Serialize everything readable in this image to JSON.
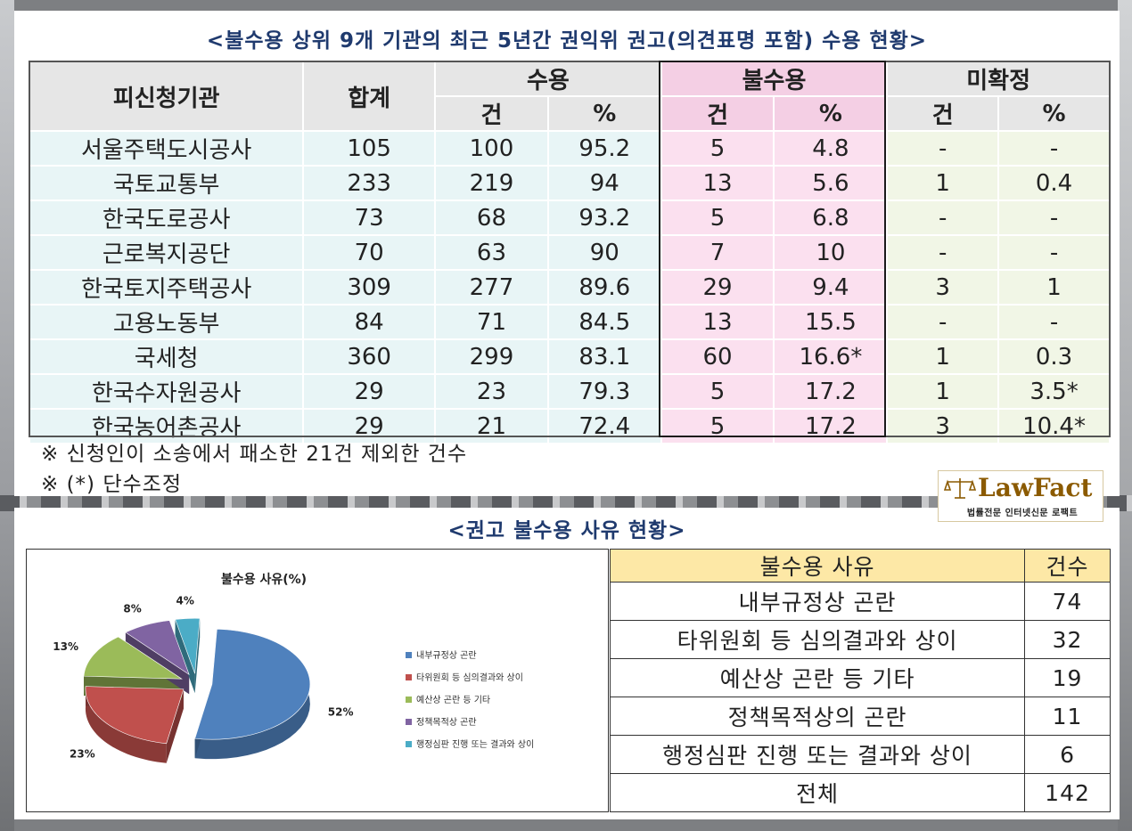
{
  "title_top": "<불수용 상위 9개 기관의 최근 5년간 권익위 권고(의견표명 포함) 수용 현황>",
  "main_table": {
    "headers": {
      "org": "피신청기관",
      "total": "합계",
      "accept": "수용",
      "reject": "불수용",
      "undecided": "미확정",
      "count": "건",
      "pct": "%"
    },
    "rows": [
      {
        "org": "서울주택도시공사",
        "total": "105",
        "acc_n": "100",
        "acc_p": "95.2",
        "rej_n": "5",
        "rej_p": "4.8",
        "und_n": "-",
        "und_p": "-"
      },
      {
        "org": "국토교통부",
        "total": "233",
        "acc_n": "219",
        "acc_p": "94",
        "rej_n": "13",
        "rej_p": "5.6",
        "und_n": "1",
        "und_p": "0.4"
      },
      {
        "org": "한국도로공사",
        "total": "73",
        "acc_n": "68",
        "acc_p": "93.2",
        "rej_n": "5",
        "rej_p": "6.8",
        "und_n": "-",
        "und_p": "-"
      },
      {
        "org": "근로복지공단",
        "total": "70",
        "acc_n": "63",
        "acc_p": "90",
        "rej_n": "7",
        "rej_p": "10",
        "und_n": "-",
        "und_p": "-"
      },
      {
        "org": "한국토지주택공사",
        "total": "309",
        "acc_n": "277",
        "acc_p": "89.6",
        "rej_n": "29",
        "rej_p": "9.4",
        "und_n": "3",
        "und_p": "1"
      },
      {
        "org": "고용노동부",
        "total": "84",
        "acc_n": "71",
        "acc_p": "84.5",
        "rej_n": "13",
        "rej_p": "15.5",
        "und_n": "-",
        "und_p": "-"
      },
      {
        "org": "국세청",
        "total": "360",
        "acc_n": "299",
        "acc_p": "83.1",
        "rej_n": "60",
        "rej_p": "16.6*",
        "und_n": "1",
        "und_p": "0.3"
      },
      {
        "org": "한국수자원공사",
        "total": "29",
        "acc_n": "23",
        "acc_p": "79.3",
        "rej_n": "5",
        "rej_p": "17.2",
        "und_n": "1",
        "und_p": "3.5*"
      },
      {
        "org": "한국농어촌공사",
        "total": "29",
        "acc_n": "21",
        "acc_p": "72.4",
        "rej_n": "5",
        "rej_p": "17.2",
        "und_n": "3",
        "und_p": "10.4*"
      }
    ]
  },
  "notes": [
    "※ 신청인이 소송에서 패소한 21건 제외한 건수",
    "※ (*) 단수조정"
  ],
  "logo": {
    "brand": "LawFact",
    "sub": "법률전문 인터넷신문 로팩트"
  },
  "title_bottom": "<권고 불수용 사유 현황>",
  "chart_data": {
    "type": "pie",
    "title": "불수용 사유(%)",
    "categories": [
      "내부규정상 곤란",
      "타위원회 등 심의결과와 상이",
      "예산상 곤란 등 기타",
      "정책목적상 곤란",
      "행정심판 진행 또는 결과와 상이"
    ],
    "values": [
      52,
      23,
      13,
      8,
      4
    ],
    "labels": [
      "52%",
      "23%",
      "13%",
      "8%",
      "4%"
    ],
    "colors": [
      "#4f81bd",
      "#c0504d",
      "#9bbb59",
      "#8064a2",
      "#4bacc6"
    ],
    "style": "3d-exploded",
    "legend_position": "right"
  },
  "reason_table": {
    "headers": {
      "reason": "불수용 사유",
      "count": "건수"
    },
    "rows": [
      {
        "reason": "내부규정상 곤란",
        "count": "74"
      },
      {
        "reason": "타위원회 등 심의결과와 상이",
        "count": "32"
      },
      {
        "reason": "예산상 곤란 등 기타",
        "count": "19"
      },
      {
        "reason": "정책목적상의 곤란",
        "count": "11"
      },
      {
        "reason": "행정심판 진행 또는 결과와 상이",
        "count": "6"
      },
      {
        "reason": "전체",
        "count": "142"
      }
    ]
  }
}
